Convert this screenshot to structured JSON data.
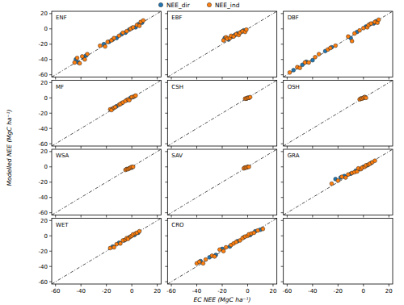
{
  "figure": {
    "x_label": "EC NEE (MgC ha⁻¹)",
    "y_label": "Modelled NEE (MgC ha⁻¹)",
    "legend": "top"
  },
  "chart_data": [
    {
      "type": "scatter",
      "title": "ENF",
      "xlim": [
        -63,
        23
      ],
      "ylim": [
        -63,
        23
      ],
      "xticks": [
        -60,
        -40,
        -20,
        0,
        20
      ],
      "yticks": [
        -60,
        -40,
        -20,
        0,
        20
      ],
      "tick_labels": "y",
      "series": [
        {
          "name": "NEE_dir",
          "color": "#1f77b4",
          "marker": "circle",
          "x": [
            -44,
            -42,
            -38,
            -36,
            -22,
            -18,
            -15,
            -12,
            -8,
            -5,
            -2,
            0,
            3,
            5,
            8
          ],
          "values": [
            -40,
            -44,
            -38,
            -35,
            -20,
            -17,
            -14,
            -12,
            -7,
            -5,
            -1,
            1,
            2,
            6,
            8
          ]
        },
        {
          "name": "NEE_ind",
          "color": "#ff7f0e",
          "marker": "circle",
          "x": [
            -45,
            -43,
            -41,
            -39,
            -37,
            -35,
            -25,
            -21,
            -19,
            -16,
            -14,
            -10,
            -7,
            -4,
            -1,
            1,
            4,
            6,
            7,
            9
          ],
          "values": [
            -44,
            -38,
            -45,
            -36,
            -40,
            -33,
            -22,
            -23,
            -17,
            -15,
            -12,
            -9,
            -5,
            -3,
            0,
            2,
            5,
            4,
            9,
            11
          ]
        }
      ]
    },
    {
      "type": "scatter",
      "title": "EBF",
      "xlim": [
        -63,
        23
      ],
      "ylim": [
        -63,
        23
      ],
      "xticks": [
        -60,
        -40,
        -20,
        0,
        20
      ],
      "yticks": [
        -60,
        -40,
        -20,
        0,
        20
      ],
      "tick_labels": false,
      "series": [
        {
          "name": "NEE_dir",
          "color": "#1f77b4",
          "marker": "circle",
          "x": [
            -18,
            -15,
            -12,
            -10,
            -8,
            -5,
            -3
          ],
          "values": [
            -12,
            -14,
            -10,
            -8,
            -6,
            -4,
            -2
          ]
        },
        {
          "name": "NEE_ind",
          "color": "#ff7f0e",
          "marker": "circle",
          "x": [
            -19,
            -17,
            -16,
            -14,
            -13,
            -11,
            -9,
            -7,
            -6,
            -4,
            -2,
            -1
          ],
          "values": [
            -15,
            -11,
            -13,
            -12,
            -9,
            -10,
            -7,
            -8,
            -5,
            -3,
            -4,
            -1
          ]
        }
      ]
    },
    {
      "type": "scatter",
      "title": "DBF",
      "xlim": [
        -63,
        23
      ],
      "ylim": [
        -63,
        23
      ],
      "xticks": [
        -60,
        -40,
        -20,
        0,
        20
      ],
      "yticks": [
        -60,
        -40,
        -20,
        0,
        20
      ],
      "tick_labels": false,
      "series": [
        {
          "name": "NEE_dir",
          "color": "#1f77b4",
          "marker": "circle",
          "x": [
            -55,
            -48,
            -45,
            -40,
            -30,
            -25,
            -10,
            -5,
            2,
            5,
            8,
            10
          ],
          "values": [
            -54,
            -47,
            -43,
            -41,
            -29,
            -24,
            -12,
            -4,
            3,
            6,
            7,
            10
          ]
        },
        {
          "name": "NEE_ind",
          "color": "#ff7f0e",
          "marker": "circle",
          "x": [
            -58,
            -52,
            -50,
            -46,
            -43,
            -38,
            -35,
            -28,
            -26,
            -22,
            -12,
            -9,
            -7,
            -3,
            0,
            3,
            4,
            6,
            9,
            11,
            12
          ],
          "values": [
            -57,
            -50,
            -51,
            -44,
            -44,
            -37,
            -33,
            -27,
            -25,
            -22,
            -10,
            -16,
            -6,
            -2,
            1,
            2,
            5,
            7,
            9,
            8,
            12
          ]
        }
      ]
    },
    {
      "type": "scatter",
      "title": "MF",
      "xlim": [
        -63,
        23
      ],
      "ylim": [
        -63,
        23
      ],
      "xticks": [
        -60,
        -40,
        -20,
        0,
        20
      ],
      "yticks": [
        -60,
        -40,
        -20,
        0,
        20
      ],
      "tick_labels": "y",
      "series": [
        {
          "name": "NEE_dir",
          "color": "#1f77b4",
          "marker": "circle",
          "x": [
            -15,
            -12,
            -8,
            -4,
            -1,
            1
          ],
          "values": [
            -14,
            -11,
            -7,
            -3,
            0,
            1
          ]
        },
        {
          "name": "NEE_ind",
          "color": "#ff7f0e",
          "marker": "circle",
          "x": [
            -17,
            -16,
            -14,
            -13,
            -10,
            -9,
            -7,
            -5,
            -3,
            -2,
            0,
            2,
            3
          ],
          "values": [
            -15,
            -16,
            -13,
            -12,
            -9,
            -8,
            -6,
            -4,
            -2,
            -3,
            1,
            2,
            3
          ]
        }
      ]
    },
    {
      "type": "scatter",
      "title": "CSH",
      "xlim": [
        -63,
        23
      ],
      "ylim": [
        -63,
        23
      ],
      "xticks": [
        -60,
        -40,
        -20,
        0,
        20
      ],
      "yticks": [
        -60,
        -40,
        -20,
        0,
        20
      ],
      "tick_labels": false,
      "series": [
        {
          "name": "NEE_dir",
          "color": "#1f77b4",
          "marker": "circle",
          "x": [
            -1,
            0,
            1
          ],
          "values": [
            -1,
            0,
            0
          ]
        },
        {
          "name": "NEE_ind",
          "color": "#ff7f0e",
          "marker": "circle",
          "x": [
            -2,
            -1,
            0,
            1,
            2
          ],
          "values": [
            -1,
            -1,
            0,
            0,
            1
          ]
        }
      ]
    },
    {
      "type": "scatter",
      "title": "OSH",
      "xlim": [
        -63,
        23
      ],
      "ylim": [
        -63,
        23
      ],
      "xticks": [
        -60,
        -40,
        -20,
        0,
        20
      ],
      "yticks": [
        -60,
        -40,
        -20,
        0,
        20
      ],
      "tick_labels": false,
      "series": [
        {
          "name": "NEE_dir",
          "color": "#1f77b4",
          "marker": "circle",
          "x": [
            -2,
            0,
            1
          ],
          "values": [
            -1,
            0,
            1
          ]
        },
        {
          "name": "NEE_ind",
          "color": "#ff7f0e",
          "marker": "circle",
          "x": [
            -3,
            -2,
            -1,
            0,
            1,
            2
          ],
          "values": [
            -2,
            -1,
            -1,
            0,
            1,
            0
          ]
        }
      ]
    },
    {
      "type": "scatter",
      "title": "WSA",
      "xlim": [
        -63,
        23
      ],
      "ylim": [
        -63,
        23
      ],
      "xticks": [
        -60,
        -40,
        -20,
        0,
        20
      ],
      "yticks": [
        -60,
        -40,
        -20,
        0,
        20
      ],
      "tick_labels": "y",
      "series": [
        {
          "name": "NEE_dir",
          "color": "#1f77b4",
          "marker": "circle",
          "x": [
            -4,
            -2,
            0
          ],
          "values": [
            -3,
            -2,
            -1
          ]
        },
        {
          "name": "NEE_ind",
          "color": "#ff7f0e",
          "marker": "circle",
          "x": [
            -5,
            -4,
            -3,
            -2,
            -1,
            0,
            1
          ],
          "values": [
            -4,
            -3,
            -3,
            -2,
            -1,
            0,
            0
          ]
        }
      ]
    },
    {
      "type": "scatter",
      "title": "SAV",
      "xlim": [
        -63,
        23
      ],
      "ylim": [
        -63,
        23
      ],
      "xticks": [
        -60,
        -40,
        -20,
        0,
        20
      ],
      "yticks": [
        -60,
        -40,
        -20,
        0,
        20
      ],
      "tick_labels": false,
      "series": [
        {
          "name": "NEE_dir",
          "color": "#1f77b4",
          "marker": "circle",
          "x": [
            -2,
            0
          ],
          "values": [
            -1,
            0
          ]
        },
        {
          "name": "NEE_ind",
          "color": "#ff7f0e",
          "marker": "circle",
          "x": [
            -3,
            -2,
            -1,
            0,
            1
          ],
          "values": [
            -2,
            -1,
            -1,
            0,
            0
          ]
        }
      ]
    },
    {
      "type": "scatter",
      "title": "GRA",
      "xlim": [
        -63,
        23
      ],
      "ylim": [
        -63,
        23
      ],
      "xticks": [
        -60,
        -40,
        -20,
        0,
        20
      ],
      "yticks": [
        -60,
        -40,
        -20,
        0,
        20
      ],
      "tick_labels": false,
      "series": [
        {
          "name": "NEE_dir",
          "color": "#1f77b4",
          "marker": "circle",
          "x": [
            -22,
            -18,
            -15,
            -10,
            -6,
            -3,
            0,
            3,
            6
          ],
          "values": [
            -16,
            -14,
            -12,
            -9,
            -5,
            -3,
            0,
            2,
            5
          ]
        },
        {
          "name": "NEE_ind",
          "color": "#ff7f0e",
          "marker": "circle",
          "x": [
            -25,
            -20,
            -17,
            -14,
            -12,
            -9,
            -7,
            -5,
            -4,
            -2,
            -1,
            1,
            2,
            4,
            5,
            7,
            9
          ],
          "values": [
            -22,
            -18,
            -13,
            -14,
            -10,
            -8,
            -7,
            -6,
            -2,
            -3,
            -1,
            0,
            2,
            3,
            4,
            6,
            8
          ]
        }
      ]
    },
    {
      "type": "scatter",
      "title": "WET",
      "xlim": [
        -63,
        23
      ],
      "ylim": [
        -63,
        23
      ],
      "xticks": [
        -60,
        -40,
        -20,
        0,
        20
      ],
      "yticks": [
        -60,
        -40,
        -20,
        0,
        20
      ],
      "tick_labels": true,
      "series": [
        {
          "name": "NEE_dir",
          "color": "#1f77b4",
          "marker": "circle",
          "x": [
            -15,
            -10,
            -6,
            -2,
            2,
            5
          ],
          "values": [
            -14,
            -9,
            -6,
            -2,
            1,
            4
          ]
        },
        {
          "name": "NEE_ind",
          "color": "#ff7f0e",
          "marker": "circle",
          "x": [
            -17,
            -14,
            -12,
            -9,
            -7,
            -5,
            -4,
            -3,
            -1,
            0,
            1,
            3,
            4,
            6
          ],
          "values": [
            -16,
            -15,
            -11,
            -10,
            -6,
            -5,
            -3,
            -4,
            -1,
            0,
            2,
            3,
            4,
            6
          ]
        }
      ]
    },
    {
      "type": "scatter",
      "title": "CRO",
      "xlim": [
        -63,
        23
      ],
      "ylim": [
        -63,
        23
      ],
      "xticks": [
        -60,
        -40,
        -20,
        0,
        20
      ],
      "yticks": [
        -60,
        -40,
        -20,
        0,
        20
      ],
      "tick_labels": "x",
      "series": [
        {
          "name": "NEE_dir",
          "color": "#1f77b4",
          "marker": "circle",
          "x": [
            -37,
            -30,
            -25,
            -20,
            -14,
            -8,
            -3,
            2,
            6,
            10
          ],
          "values": [
            -33,
            -28,
            -25,
            -17,
            -14,
            -7,
            -2,
            1,
            6,
            8
          ]
        },
        {
          "name": "NEE_ind",
          "color": "#ff7f0e",
          "marker": "circle",
          "x": [
            -40,
            -38,
            -35,
            -33,
            -28,
            -26,
            -22,
            -19,
            -17,
            -13,
            -11,
            -9,
            -6,
            -4,
            -2,
            0,
            1,
            3,
            5,
            8,
            12
          ],
          "values": [
            -36,
            -34,
            -36,
            -31,
            -26,
            -27,
            -18,
            -20,
            -15,
            -12,
            -10,
            -8,
            -6,
            -3,
            -1,
            0,
            2,
            3,
            4,
            7,
            9
          ]
        }
      ]
    },
    {
      "type": "scatter",
      "xlim": [
        -63,
        23
      ],
      "ylim": [
        -63,
        23
      ],
      "xticks": [
        -60,
        -40,
        -20,
        0,
        20
      ],
      "yticks": [
        -60,
        -40,
        -20,
        0,
        20
      ],
      "tick_labels": "x",
      "series": []
    }
  ]
}
